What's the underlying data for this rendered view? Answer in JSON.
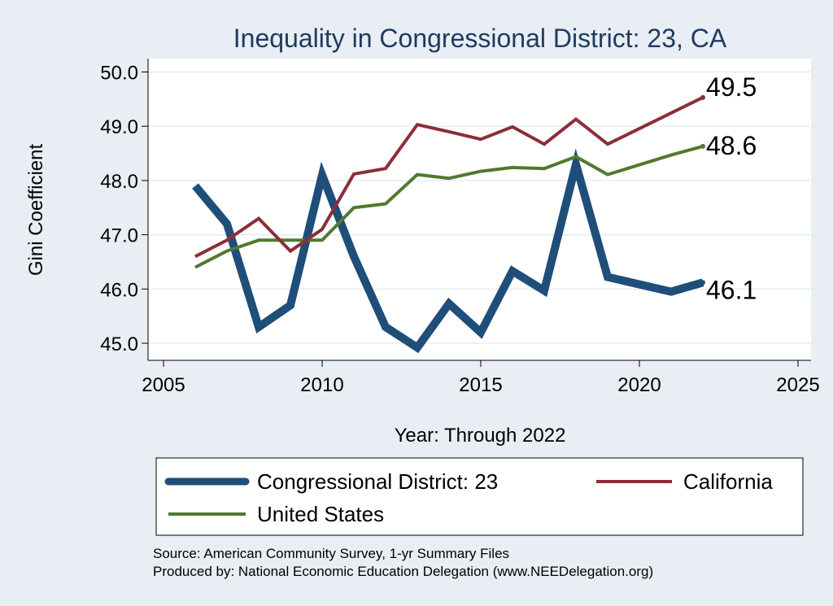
{
  "chart_data": {
    "type": "line",
    "title": "Inequality in Congressional District:  23, CA",
    "xlabel": "Year: Through 2022",
    "ylabel": "Gini Coefficient",
    "xlim": [
      2005,
      2025
    ],
    "ylim": [
      44.8,
      50.2
    ],
    "xticks": [
      2005,
      2010,
      2015,
      2020,
      2025
    ],
    "yticks": [
      45.0,
      46.0,
      47.0,
      48.0,
      49.0,
      50.0
    ],
    "ytick_labels": [
      "45.0",
      "46.0",
      "47.0",
      "48.0",
      "49.0",
      "50.0"
    ],
    "grid": true,
    "legend_position": "bottom",
    "series": [
      {
        "name": "Congressional District:  23",
        "color": "#1f4e79",
        "x": [
          2006,
          2007,
          2008,
          2009,
          2010,
          2011,
          2012,
          2013,
          2014,
          2015,
          2016,
          2017,
          2018,
          2019,
          2021,
          2022
        ],
        "values": [
          47.9,
          47.2,
          45.3,
          45.7,
          48.1,
          46.6,
          45.3,
          44.92,
          45.73,
          45.2,
          46.33,
          45.97,
          48.3,
          46.22,
          45.95,
          46.12
        ],
        "end_label": "46.1"
      },
      {
        "name": "California",
        "color": "#8b2e3a",
        "x": [
          2006,
          2007,
          2008,
          2009,
          2010,
          2011,
          2012,
          2013,
          2014,
          2015,
          2016,
          2017,
          2018,
          2019,
          2022
        ],
        "values": [
          46.6,
          46.9,
          47.3,
          46.7,
          47.1,
          48.12,
          48.22,
          49.03,
          48.9,
          48.76,
          48.99,
          48.67,
          49.13,
          48.67,
          49.53
        ],
        "end_label": "49.5"
      },
      {
        "name": "United States",
        "color": "#507a2e",
        "x": [
          2006,
          2007,
          2008,
          2009,
          2010,
          2011,
          2012,
          2013,
          2014,
          2015,
          2016,
          2017,
          2018,
          2019,
          2021,
          2022
        ],
        "values": [
          46.4,
          46.7,
          46.9,
          46.9,
          46.9,
          47.5,
          47.57,
          48.11,
          48.04,
          48.17,
          48.24,
          48.22,
          48.44,
          48.11,
          48.47,
          48.63
        ],
        "end_label": "48.6"
      }
    ]
  },
  "footer": {
    "source": "Source: American Community Survey, 1-yr Summary Files",
    "producer": "Produced by: National Economic Education Delegation (www.NEEDelegation.org)"
  }
}
